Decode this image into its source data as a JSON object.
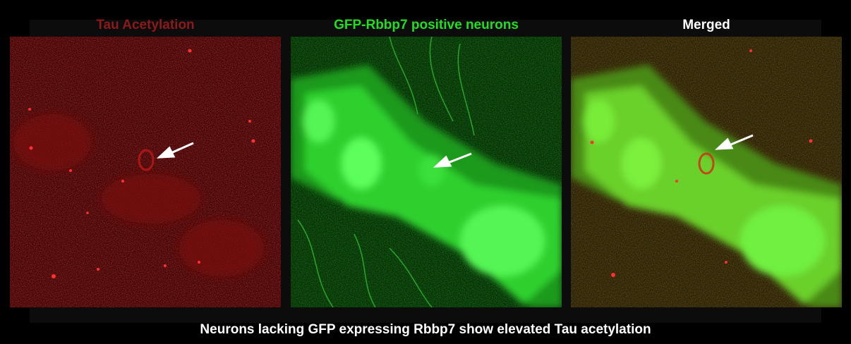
{
  "panels": [
    {
      "id": "tau",
      "title": "Tau Acetylation",
      "title_color": "#8b1a1a"
    },
    {
      "id": "gfp",
      "title": "GFP-Rbbp7 positive neurons",
      "title_color": "#22dd22"
    },
    {
      "id": "merged",
      "title": "Merged",
      "title_color": "#ffffff"
    }
  ],
  "caption": "Neurons lacking GFP expressing Rbbp7 show elevated Tau acetylation",
  "colors": {
    "background": "#000000",
    "red_channel": "#e02020",
    "green_channel": "#22ee22",
    "arrow": "#ffffff"
  }
}
